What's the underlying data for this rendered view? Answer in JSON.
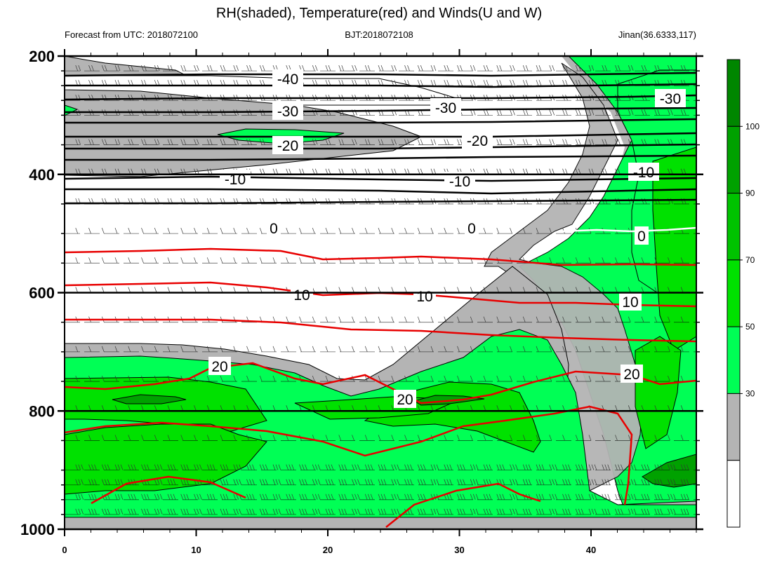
{
  "chart_data": {
    "type": "contour",
    "title": "RH(shaded), Temperature(red) and Winds(U and W)",
    "subtitle_left": "Forecast from UTC: 2018072100",
    "subtitle_center": "BJT:2018072108",
    "subtitle_right": "Jinan(36.6333,117)",
    "x_ticks": [
      "0",
      "10",
      "20",
      "30",
      "40"
    ],
    "x_range": [
      0,
      48
    ],
    "y_ticks": [
      "200",
      "400",
      "600",
      "800",
      "1000"
    ],
    "y_range": [
      200,
      1000
    ],
    "y_levels": [
      200,
      225,
      250,
      275,
      300,
      350,
      400,
      450,
      500,
      550,
      600,
      650,
      700,
      750,
      800,
      850,
      900,
      925,
      950,
      975,
      1000
    ],
    "colorbar": {
      "labels": [
        "30",
        "50",
        "70",
        "90",
        "100"
      ],
      "levels": [
        30,
        50,
        70,
        90,
        100
      ],
      "colors": [
        "#ffffff",
        "#b4b4b4",
        "#00ff55",
        "#00e100",
        "#00c300",
        "#00a100",
        "#008600"
      ]
    },
    "temperature_contours_black": [
      {
        "label": "-40",
        "y": [
          220,
          230,
          238,
          248,
          256,
          266,
          274,
          280
        ]
      },
      {
        "label": "-30",
        "y": [
          300,
          306,
          312,
          318,
          322,
          328
        ]
      },
      {
        "label": "-20",
        "y": [
          350,
          355,
          360,
          365,
          370,
          375
        ]
      },
      {
        "label": "-10",
        "y": [
          425,
          430,
          440,
          445,
          455,
          465
        ]
      }
    ],
    "contour_labels": [
      "-40",
      "-30",
      "-30",
      "-30",
      "-20",
      "-20",
      "-10",
      "-10",
      "-10",
      "0",
      "0",
      "0",
      "10",
      "10",
      "10",
      "20",
      "20",
      "20"
    ],
    "temperature_contours_red": [
      {
        "label": "20",
        "y_left": 830,
        "y_right": 815
      },
      {
        "label": "10",
        "y_left": 635,
        "y_right": 670
      },
      {
        "label": "0",
        "y_left": 570,
        "y_right": 530
      }
    ]
  }
}
